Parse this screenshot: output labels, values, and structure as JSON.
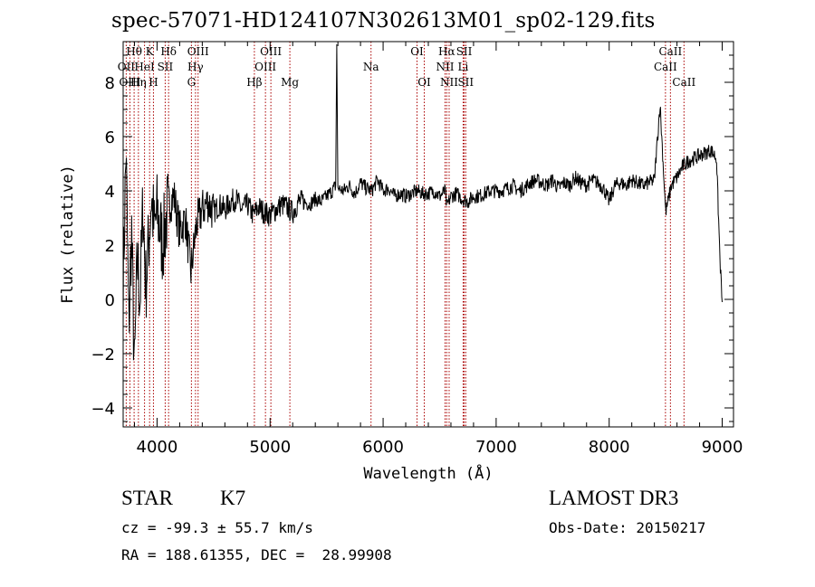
{
  "title": "spec-57071-HD124107N302613M01_sp02-129.fits",
  "info": {
    "class": "STAR",
    "subclass": "K7",
    "survey": "LAMOST DR3",
    "cz": "cz = -99.3 ± 55.7 km/s",
    "obs_date": "Obs-Date: 20150217",
    "radec": "RA = 188.61355, DEC =  28.99908"
  },
  "chart_data": {
    "type": "line",
    "title": "spec-57071-HD124107N302613M01_sp02-129.fits",
    "xlabel": "Wavelength (Å)",
    "ylabel": "Flux (relative)",
    "xlim": [
      3700,
      9100
    ],
    "ylim": [
      -4.7,
      9.5
    ],
    "xticks": [
      4000,
      5000,
      6000,
      7000,
      8000,
      9000
    ],
    "yticks": [
      -4,
      -2,
      0,
      2,
      4,
      6,
      8
    ],
    "series": [
      {
        "name": "spectrum",
        "x": [
          3700,
          3725,
          3750,
          3775,
          3800,
          3825,
          3850,
          3875,
          3900,
          3925,
          3950,
          3975,
          4000,
          4050,
          4100,
          4150,
          4200,
          4250,
          4300,
          4350,
          4400,
          4450,
          4500,
          4550,
          4600,
          4650,
          4700,
          4750,
          4800,
          4850,
          4900,
          4950,
          5000,
          5050,
          5100,
          5150,
          5200,
          5250,
          5300,
          5350,
          5400,
          5450,
          5500,
          5550,
          5580,
          5590,
          5600,
          5650,
          5700,
          5750,
          5800,
          5850,
          5900,
          5950,
          6000,
          6050,
          6100,
          6150,
          6200,
          6250,
          6300,
          6350,
          6400,
          6450,
          6500,
          6550,
          6563,
          6600,
          6650,
          6700,
          6750,
          6800,
          6850,
          6900,
          6950,
          7000,
          7050,
          7100,
          7150,
          7200,
          7250,
          7300,
          7350,
          7400,
          7450,
          7500,
          7550,
          7600,
          7650,
          7700,
          7750,
          7800,
          7850,
          7900,
          7950,
          8000,
          8050,
          8100,
          8150,
          8200,
          8250,
          8300,
          8350,
          8400,
          8450,
          8500,
          8550,
          8600,
          8650,
          8700,
          8750,
          8800,
          8850,
          8900,
          8950,
          8980,
          9000
        ],
        "values": [
          0.5,
          5.5,
          -1.0,
          2.5,
          -2.8,
          1.5,
          0.0,
          3.5,
          0.5,
          2.0,
          3.8,
          2.5,
          3.2,
          2.0,
          3.5,
          3.8,
          2.5,
          3.0,
          1.0,
          2.8,
          3.3,
          3.6,
          3.2,
          3.5,
          3.3,
          3.6,
          3.7,
          3.3,
          3.5,
          3.1,
          3.4,
          3.2,
          3.1,
          3.3,
          3.5,
          3.4,
          3.2,
          3.6,
          3.6,
          3.5,
          3.7,
          3.6,
          3.8,
          4.0,
          4.2,
          9.4,
          4.1,
          4.0,
          4.2,
          3.9,
          4.3,
          4.1,
          4.0,
          4.4,
          4.0,
          4.1,
          3.8,
          3.9,
          3.8,
          3.9,
          4.0,
          3.9,
          3.9,
          4.0,
          3.8,
          4.0,
          3.4,
          3.8,
          3.9,
          3.7,
          3.6,
          3.8,
          3.8,
          3.9,
          4.0,
          4.0,
          4.0,
          4.1,
          4.2,
          4.0,
          4.1,
          4.3,
          4.4,
          4.3,
          4.2,
          4.4,
          4.1,
          4.3,
          4.2,
          4.5,
          4.3,
          4.2,
          4.4,
          4.3,
          4.1,
          3.6,
          4.2,
          4.3,
          4.2,
          4.4,
          4.3,
          4.2,
          4.3,
          4.4,
          7.2,
          3.2,
          4.2,
          4.5,
          4.9,
          5.1,
          5.2,
          5.3,
          5.4,
          5.5,
          5.2,
          1.5,
          -0.1
        ]
      }
    ],
    "lines": [
      {
        "label": "Hθ",
        "x": 3797,
        "row": 0
      },
      {
        "label": "OII",
        "x": 3727,
        "row": 1
      },
      {
        "label": "OIII",
        "x": 3760,
        "row": 2
      },
      {
        "label": "HeI",
        "x": 3889,
        "row": 1
      },
      {
        "label": "Hη",
        "x": 3835,
        "row": 2
      },
      {
        "label": "K",
        "x": 3934,
        "row": 0
      },
      {
        "label": "H",
        "x": 3968,
        "row": 2
      },
      {
        "label": "SII",
        "x": 4072,
        "row": 1
      },
      {
        "label": "Hδ",
        "x": 4102,
        "row": 0
      },
      {
        "label": "OIII",
        "x": 4363,
        "row": 0
      },
      {
        "label": "Hγ",
        "x": 4340,
        "row": 1
      },
      {
        "label": "G",
        "x": 4304,
        "row": 2
      },
      {
        "label": "Hβ",
        "x": 4861,
        "row": 2
      },
      {
        "label": "OIII",
        "x": 5007,
        "row": 0
      },
      {
        "label": "OIII",
        "x": 4959,
        "row": 1
      },
      {
        "label": "Mg",
        "x": 5175,
        "row": 2
      },
      {
        "label": "Na",
        "x": 5893,
        "row": 1
      },
      {
        "label": "OI",
        "x": 6300,
        "row": 0
      },
      {
        "label": "OI",
        "x": 6364,
        "row": 2
      },
      {
        "label": "Hα",
        "x": 6563,
        "row": 0
      },
      {
        "label": "NII",
        "x": 6548,
        "row": 1
      },
      {
        "label": "NII",
        "x": 6584,
        "row": 2
      },
      {
        "label": "SII",
        "x": 6717,
        "row": 0
      },
      {
        "label": "Li",
        "x": 6708,
        "row": 1
      },
      {
        "label": "SII",
        "x": 6731,
        "row": 2
      },
      {
        "label": "CaII",
        "x": 8542,
        "row": 0
      },
      {
        "label": "CaII",
        "x": 8498,
        "row": 1
      },
      {
        "label": "CaII",
        "x": 8662,
        "row": 2
      }
    ],
    "line_color": "#aa0000"
  }
}
